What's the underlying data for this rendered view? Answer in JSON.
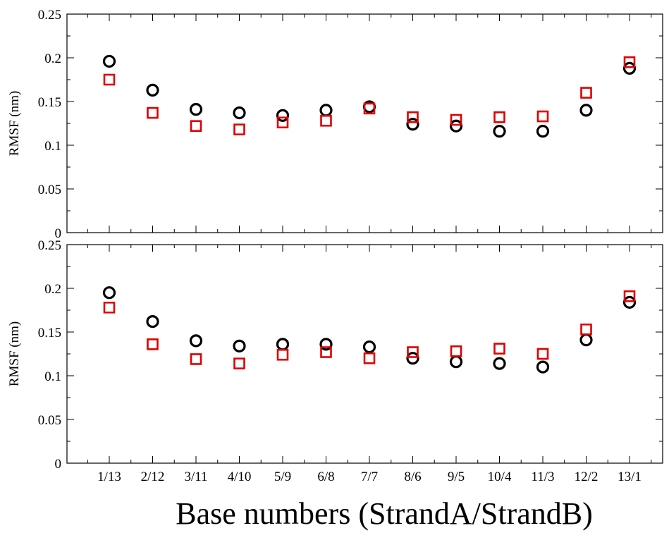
{
  "chart_data": {
    "type": "scatter",
    "xlabel": "Base numbers (StrandA/StrandB)",
    "categories": [
      "1/13",
      "2/12",
      "3/11",
      "4/10",
      "5/9",
      "6/8",
      "7/7",
      "8/6",
      "9/5",
      "10/4",
      "11/3",
      "12/2",
      "13/1"
    ],
    "colors": {
      "circle_series": "#000000",
      "square_series": "#e00000"
    },
    "panels": [
      {
        "ylabel": "RMSF (nm)",
        "ylim": [
          0,
          0.25
        ],
        "yticks": [
          "0",
          "0.05",
          "0.1",
          "0.15",
          "0.2",
          "0.25"
        ],
        "series": [
          {
            "marker": "circle",
            "values": [
              0.196,
              0.163,
              0.141,
              0.137,
              0.134,
              0.14,
              0.144,
              0.124,
              0.122,
              0.116,
              0.116,
              0.14,
              0.188
            ]
          },
          {
            "marker": "square",
            "values": [
              0.175,
              0.137,
              0.122,
              0.118,
              0.126,
              0.128,
              0.142,
              0.132,
              0.129,
              0.132,
              0.133,
              0.16,
              0.195
            ]
          }
        ]
      },
      {
        "ylabel": "RMSF (nm)",
        "ylim": [
          0,
          0.25
        ],
        "yticks": [
          "0",
          "0.05",
          "0.1",
          "0.15",
          "0.2",
          "0.25"
        ],
        "series": [
          {
            "marker": "circle",
            "values": [
              0.195,
              0.162,
              0.14,
              0.134,
              0.136,
              0.136,
              0.133,
              0.12,
              0.116,
              0.114,
              0.11,
              0.141,
              0.184
            ]
          },
          {
            "marker": "square",
            "values": [
              0.178,
              0.136,
              0.119,
              0.114,
              0.124,
              0.127,
              0.12,
              0.127,
              0.128,
              0.131,
              0.125,
              0.153,
              0.191
            ]
          }
        ]
      }
    ]
  }
}
